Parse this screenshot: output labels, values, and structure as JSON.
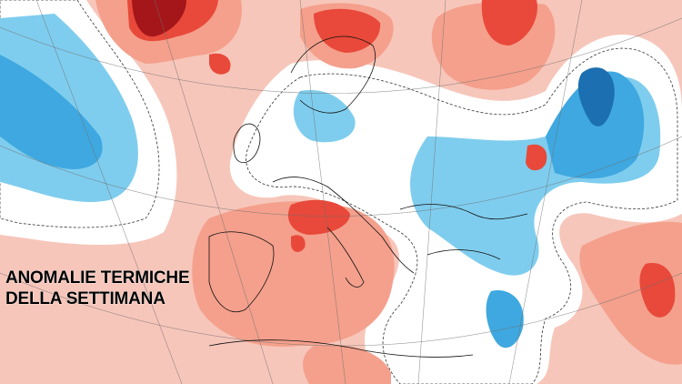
{
  "title": {
    "lines": [
      "ANOMALIE TERMICHE",
      "DELLA SETTIMANA"
    ]
  }
}
